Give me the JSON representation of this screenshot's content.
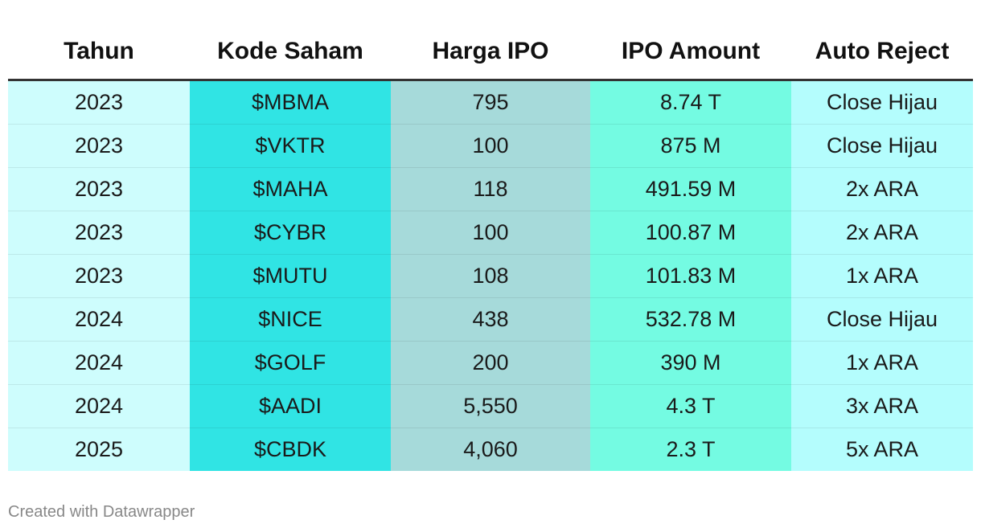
{
  "chart_data": {
    "type": "table",
    "columns": [
      {
        "label": "Tahun",
        "color": "#cefdfd"
      },
      {
        "label": "Kode Saham",
        "color": "#30e4e4"
      },
      {
        "label": "Harga IPO",
        "color": "#a6dada"
      },
      {
        "label": "IPO Amount",
        "color": "#74fbe2"
      },
      {
        "label": "Auto Reject",
        "color": "#b4fdfd"
      }
    ],
    "rows": [
      [
        "2023",
        "$MBMA",
        "795",
        "8.74 T",
        "Close Hijau"
      ],
      [
        "2023",
        "$VKTR",
        "100",
        "875 M",
        "Close Hijau"
      ],
      [
        "2023",
        "$MAHA",
        "118",
        "491.59 M",
        "2x ARA"
      ],
      [
        "2023",
        "$CYBR",
        "100",
        "100.87 M",
        "2x ARA"
      ],
      [
        "2023",
        "$MUTU",
        "108",
        "101.83 M",
        "1x ARA"
      ],
      [
        "2024",
        "$NICE",
        "438",
        "532.78 M",
        "Close Hijau"
      ],
      [
        "2024",
        "$GOLF",
        "200",
        "390 M",
        "1x ARA"
      ],
      [
        "2024",
        "$AADI",
        "5,550",
        "4.3 T",
        "3x ARA"
      ],
      [
        "2025",
        "$CBDK",
        "4,060",
        "2.3 T",
        "5x ARA"
      ]
    ]
  },
  "footer": {
    "credit": "Created with Datawrapper"
  }
}
